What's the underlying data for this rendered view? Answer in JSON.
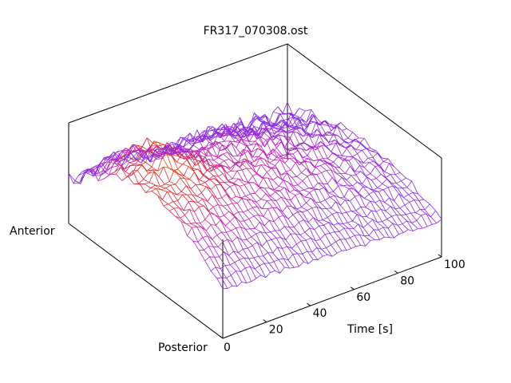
{
  "chart_data": {
    "type": "surface",
    "title": "FR317_070308.ost",
    "xlabel": "Time [s]",
    "ylabel_low": "Posterior",
    "ylabel_high": "Anterior",
    "x": {
      "min": 0,
      "max": 100,
      "ticks": [
        0,
        20,
        40,
        60,
        80,
        100
      ]
    },
    "y": {
      "min": 0,
      "max": 1
    },
    "grid": false,
    "legend": "none",
    "colormap": [
      "#8a2be2",
      "#c020c0",
      "#e0302a",
      "#f07a10",
      "#ffd21a"
    ],
    "surface_model": "dome across posterior–anterior, highest and warmest toward early time near anterior side, decaying with time"
  }
}
